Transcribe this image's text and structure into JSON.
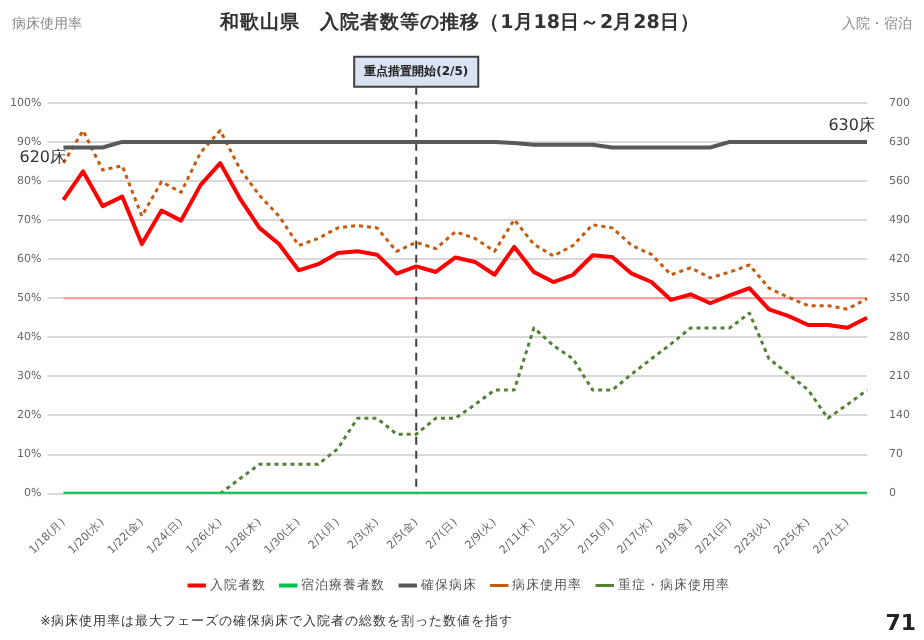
{
  "chart_data": {
    "type": "line",
    "title": "和歌山県　入院者数等の推移（1月18日～2月28日）",
    "ylabel": "病床使用率",
    "y2label": "入院・宿泊",
    "categories": [
      "1/18(月)",
      null,
      "1/20(水)",
      null,
      "1/22(金)",
      null,
      "1/24(日)",
      null,
      "1/26(火)",
      null,
      "1/28(木)",
      null,
      "1/30(土)",
      null,
      "2/1(月)",
      null,
      "2/3(水)",
      null,
      "2/5(金)",
      null,
      "2/7(日)",
      null,
      "2/9(火)",
      null,
      "2/11(木)",
      null,
      "2/13(土)",
      null,
      "2/15(月)",
      null,
      "2/17(水)",
      null,
      "2/19(金)",
      null,
      "2/21(日)",
      null,
      "2/23(火)",
      null,
      "2/25(木)",
      null,
      "2/27(土)",
      null
    ],
    "series": [
      {
        "name": "入院者数",
        "color": "#ff0000",
        "axis": "y2",
        "line_style": "solid",
        "values": [
          526,
          577,
          515,
          532,
          447,
          507,
          489,
          553,
          592,
          529,
          476,
          447,
          400,
          411,
          431,
          434,
          428,
          394,
          407,
          397,
          423,
          415,
          392,
          442,
          397,
          379,
          392,
          427,
          424,
          394,
          379,
          347,
          357,
          341,
          355,
          368,
          330,
          318,
          302,
          302,
          297,
          315
        ]
      },
      {
        "name": "宿泊療養者数",
        "color": "#00c050",
        "axis": "y2",
        "line_style": "solid",
        "values": [
          0,
          0,
          0,
          0,
          0,
          0,
          0,
          0,
          0,
          0,
          0,
          0,
          0,
          0,
          0,
          0,
          0,
          0,
          0,
          0,
          0,
          0,
          0,
          0,
          0,
          0,
          0,
          0,
          0,
          0,
          0,
          0,
          0,
          0,
          0,
          0,
          0,
          0,
          0,
          0,
          0,
          0
        ]
      },
      {
        "name": "確保病床",
        "color": "#595959",
        "axis": "y2",
        "line_style": "solid",
        "values": [
          620,
          620,
          620,
          630,
          630,
          630,
          630,
          630,
          630,
          630,
          630,
          630,
          630,
          630,
          630,
          630,
          630,
          630,
          630,
          630,
          630,
          630,
          630,
          628,
          625,
          625,
          625,
          625,
          620,
          620,
          620,
          620,
          620,
          620,
          630,
          630,
          630,
          630,
          630,
          630,
          630,
          630
        ]
      },
      {
        "name": "病床使用率",
        "color": "#c55a11",
        "axis": "y",
        "line_style": "dotted",
        "values": [
          84.6,
          92.9,
          82.8,
          83.9,
          71,
          79.8,
          77.1,
          87.3,
          92.9,
          83.1,
          76.3,
          71,
          63.5,
          65.3,
          68,
          68.6,
          68,
          62,
          64.3,
          62.7,
          67,
          65.3,
          62,
          70.1,
          63.8,
          60.8,
          63.5,
          68.8,
          68,
          63.5,
          61.2,
          56,
          57.8,
          55.2,
          56.7,
          58.5,
          52.6,
          50.2,
          48.1,
          48.1,
          47.2,
          49.9
        ]
      },
      {
        "name": "重症・病床使用率",
        "color": "#548235",
        "axis": "y",
        "line_style": "dotted",
        "values": [
          null,
          null,
          null,
          null,
          null,
          null,
          null,
          null,
          0,
          3.8,
          7.5,
          7.5,
          7.5,
          7.5,
          11.5,
          19.3,
          19.3,
          15.2,
          15.2,
          19.3,
          19.3,
          22.8,
          26.5,
          26.5,
          42.4,
          37.9,
          34.5,
          26.5,
          26.5,
          30.6,
          34.5,
          38.3,
          42.4,
          42.4,
          42.4,
          46.2,
          34.5,
          30.6,
          26.5,
          19.3,
          22.8,
          26.5
        ]
      }
    ],
    "ylim": [
      0,
      100
    ],
    "yticks": [
      {
        "value": 0,
        "label": "0%"
      },
      {
        "value": 10,
        "label": "10%"
      },
      {
        "value": 20,
        "label": "20%"
      },
      {
        "value": 30,
        "label": "30%"
      },
      {
        "value": 40,
        "label": "40%"
      },
      {
        "value": 50,
        "label": "50%"
      },
      {
        "value": 60,
        "label": "60%"
      },
      {
        "value": 70,
        "label": "70%"
      },
      {
        "value": 80,
        "label": "80%"
      },
      {
        "value": 90,
        "label": "90%"
      },
      {
        "value": 100,
        "label": "100%"
      }
    ],
    "y2lim": [
      0,
      700
    ],
    "y2ticks": [
      0,
      70,
      140,
      210,
      280,
      350,
      420,
      490,
      560,
      630,
      700
    ],
    "ref_lines": [
      {
        "axis": "y",
        "value": 50,
        "color": "#ff9999",
        "line_style": "solid"
      },
      {
        "axis": "x",
        "value": "2/5(金)",
        "label": "重点措置開始(2/5)",
        "color": "#404040",
        "line_style": "dashed"
      }
    ],
    "annotations": [
      "620床",
      "630床",
      "※病床使用率は最大フェーズの確保病床で入院者の総数を割った数値を指す",
      "71"
    ],
    "grid": "y",
    "legend": "bottom",
    "marker": "none"
  }
}
